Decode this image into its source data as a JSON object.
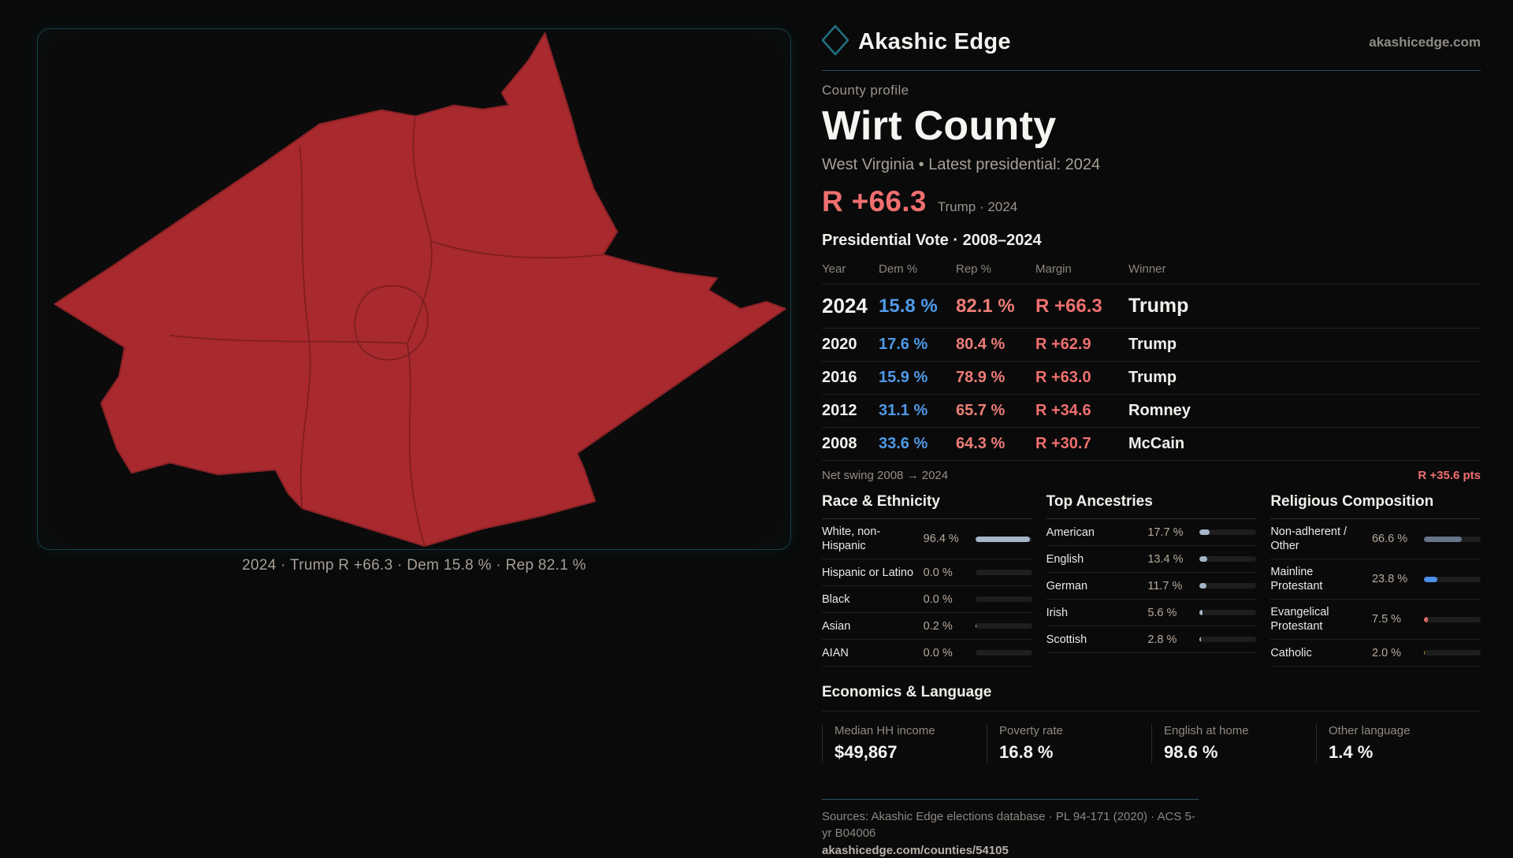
{
  "brand": {
    "name": "Akashic Edge",
    "site": "akashicedge.com"
  },
  "profile": {
    "eyebrow": "County profile",
    "title": "Wirt County",
    "subtitle": "West Virginia • Latest presidential: 2024",
    "hero_margin": "R +66.3",
    "hero_note": "Trump · 2024"
  },
  "vote_table": {
    "title": "Presidential Vote · 2008–2024",
    "columns": [
      "Year",
      "Dem %",
      "Rep %",
      "Margin",
      "Winner"
    ],
    "rows": [
      {
        "year": "2024",
        "dem": "15.8 %",
        "rep": "82.1 %",
        "margin": "R +66.3",
        "winner": "Trump"
      },
      {
        "year": "2020",
        "dem": "17.6 %",
        "rep": "80.4 %",
        "margin": "R +62.9",
        "winner": "Trump"
      },
      {
        "year": "2016",
        "dem": "15.9 %",
        "rep": "78.9 %",
        "margin": "R +63.0",
        "winner": "Trump"
      },
      {
        "year": "2012",
        "dem": "31.1 %",
        "rep": "65.7 %",
        "margin": "R +34.6",
        "winner": "Romney"
      },
      {
        "year": "2008",
        "dem": "33.6 %",
        "rep": "64.3 %",
        "margin": "R +30.7",
        "winner": "McCain"
      }
    ],
    "net_swing_label": "Net swing 2008 → 2024",
    "net_swing_value": "R +35.6 pts"
  },
  "demographics": [
    {
      "id": "race",
      "title": "Race & Ethnicity",
      "bar_color": "#a4b6c8",
      "rows": [
        {
          "label": "White, non-Hispanic",
          "value": "96.4 %",
          "pct": 96.4
        },
        {
          "label": "Hispanic or Latino",
          "value": "0.0 %",
          "pct": 0
        },
        {
          "label": "Black",
          "value": "0.0 %",
          "pct": 0
        },
        {
          "label": "Asian",
          "value": "0.2 %",
          "pct": 0.2
        },
        {
          "label": "AIAN",
          "value": "0.0 %",
          "pct": 0
        }
      ]
    },
    {
      "id": "ancestries",
      "title": "Top Ancestries",
      "bar_color": "#a4b6c8",
      "rows": [
        {
          "label": "American",
          "value": "17.7 %",
          "pct": 17.7
        },
        {
          "label": "English",
          "value": "13.4 %",
          "pct": 13.4
        },
        {
          "label": "German",
          "value": "11.7 %",
          "pct": 11.7
        },
        {
          "label": "Irish",
          "value": "5.6 %",
          "pct": 5.6
        },
        {
          "label": "Scottish",
          "value": "2.8 %",
          "pct": 2.8
        }
      ]
    },
    {
      "id": "religion",
      "title": "Religious Composition",
      "bar_color": "#68748a",
      "rows": [
        {
          "label": "Non-adherent / Other",
          "value": "66.6 %",
          "pct": 66.6,
          "color": "#68748a"
        },
        {
          "label": "Mainline Protestant",
          "value": "23.8 %",
          "pct": 23.8,
          "color": "#4a8fe8"
        },
        {
          "label": "Evangelical Protestant",
          "value": "7.5 %",
          "pct": 7.5,
          "color": "#da6b64"
        },
        {
          "label": "Catholic",
          "value": "2.0 %",
          "pct": 2.0,
          "color": "#d8a62f"
        }
      ]
    }
  ],
  "economics": {
    "title": "Economics & Language",
    "stats": [
      {
        "label": "Median HH income",
        "value": "$49,867"
      },
      {
        "label": "Poverty rate",
        "value": "16.8 %"
      },
      {
        "label": "English at home",
        "value": "98.6 %"
      },
      {
        "label": "Other language",
        "value": "1.4 %"
      }
    ]
  },
  "map": {
    "caption": "2024 · Trump R +66.3 · Dem 15.8 % · Rep 82.1 %",
    "fill": "#a8292e"
  },
  "footer": {
    "sources": "Sources: Akashic Edge elections database · PL 94-171 (2020) · ACS 5-yr B04006",
    "link": "akashicedge.com/counties/54105"
  }
}
